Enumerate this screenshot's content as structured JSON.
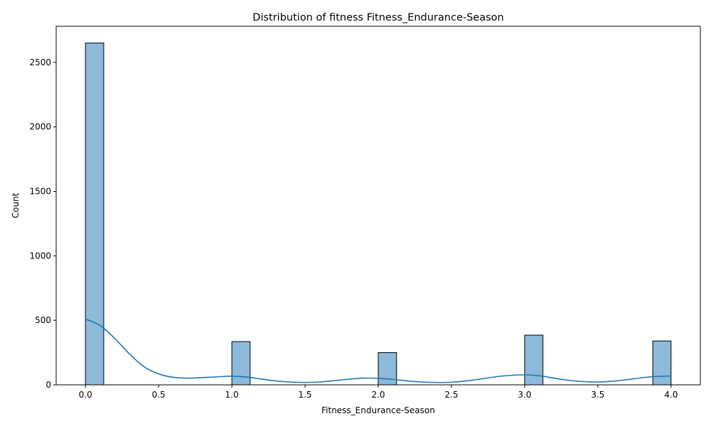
{
  "chart_data": {
    "type": "bar",
    "title": "Distribution of fitness Fitness_Endurance-Season",
    "xlabel": "Fitness_Endurance-Season",
    "ylabel": "Count",
    "xlim": [
      -0.2,
      4.2
    ],
    "ylim": [
      0,
      2780
    ],
    "xticks": [
      0.0,
      0.5,
      1.0,
      1.5,
      2.0,
      2.5,
      3.0,
      3.5,
      4.0
    ],
    "xtick_labels": [
      "0.0",
      "0.5",
      "1.0",
      "1.5",
      "2.0",
      "2.5",
      "3.0",
      "3.5",
      "4.0"
    ],
    "yticks": [
      0,
      500,
      1000,
      1500,
      2000,
      2500
    ],
    "ytick_labels": [
      "0",
      "500",
      "1000",
      "1500",
      "2000",
      "2500"
    ],
    "grid": false,
    "bins": [
      {
        "x0": 0.0,
        "x1": 0.125,
        "count": 2650
      },
      {
        "x0": 1.0,
        "x1": 1.125,
        "count": 335
      },
      {
        "x0": 2.0,
        "x1": 2.125,
        "count": 250
      },
      {
        "x0": 3.0,
        "x1": 3.125,
        "count": 385
      },
      {
        "x0": 3.875,
        "x1": 4.0,
        "count": 340
      }
    ],
    "kde": {
      "x": [
        0.0,
        0.1,
        0.2,
        0.3,
        0.4,
        0.5,
        0.6,
        0.7,
        0.8,
        0.9,
        1.0,
        1.1,
        1.2,
        1.3,
        1.4,
        1.5,
        1.6,
        1.7,
        1.8,
        1.9,
        2.0,
        2.1,
        2.2,
        2.3,
        2.4,
        2.5,
        2.6,
        2.7,
        2.8,
        2.9,
        3.0,
        3.1,
        3.2,
        3.3,
        3.4,
        3.5,
        3.6,
        3.7,
        3.8,
        3.9,
        4.0
      ],
      "y": [
        510,
        460,
        360,
        240,
        140,
        85,
        58,
        52,
        56,
        62,
        67,
        60,
        45,
        30,
        22,
        18,
        22,
        32,
        44,
        52,
        50,
        42,
        30,
        22,
        18,
        20,
        30,
        45,
        62,
        73,
        77,
        70,
        52,
        35,
        25,
        22,
        28,
        40,
        55,
        65,
        68
      ]
    },
    "colors": {
      "bar_fill": "#8db9da",
      "bar_edge": "#000000",
      "kde_line": "#1f77b4"
    }
  }
}
